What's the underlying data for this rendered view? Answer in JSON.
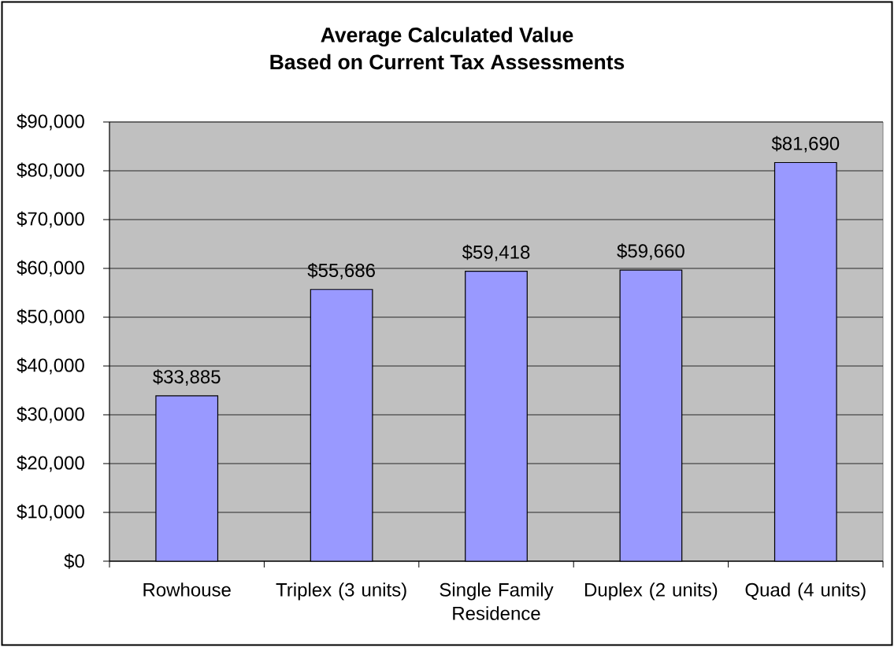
{
  "chart_data": {
    "type": "bar",
    "title": "Average Calculated Value",
    "subtitle": "Based on Current Tax Assessments",
    "categories": [
      "Rowhouse",
      "Triplex (3 units)",
      "Single Family Residence",
      "Duplex (2 units)",
      "Quad (4 units)"
    ],
    "values": [
      33885,
      55686,
      59418,
      59660,
      81690
    ],
    "value_labels": [
      "$33,885",
      "$55,686",
      "$59,418",
      "$59,660",
      "$81,690"
    ],
    "color": "#9999ff",
    "ylim": [
      0,
      90000
    ],
    "yticks": [
      {
        "value": 0,
        "label": "$0"
      },
      {
        "value": 10000,
        "label": "$10,000"
      },
      {
        "value": 20000,
        "label": "$20,000"
      },
      {
        "value": 30000,
        "label": "$30,000"
      },
      {
        "value": 40000,
        "label": "$40,000"
      },
      {
        "value": 50000,
        "label": "$50,000"
      },
      {
        "value": 60000,
        "label": "$60,000"
      },
      {
        "value": 70000,
        "label": "$70,000"
      },
      {
        "value": 80000,
        "label": "$80,000"
      },
      {
        "value": 90000,
        "label": "$90,000"
      }
    ],
    "grid": "y"
  }
}
